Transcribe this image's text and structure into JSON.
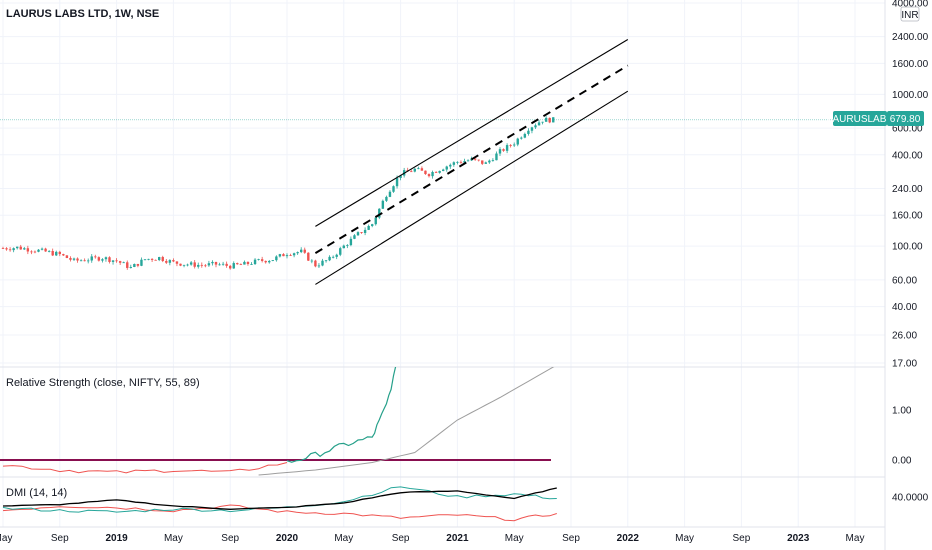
{
  "header": {
    "title": "LAURUS LABS LTD, 1W, NSE",
    "currency": "INR"
  },
  "price_badge": {
    "symbol": "LAURUSLABS",
    "price": "679.80",
    "color": "#26a69a"
  },
  "panels": {
    "rs_title": "Relative Strength (close, NIFTY, 55, 89)",
    "dmi_title": "DMI (14, 14)"
  },
  "colors": {
    "up": "#26a69a",
    "down": "#ef5350",
    "rs_line": "#26a08a",
    "rs_ma": "#9e9e9e",
    "rs_red": "#ef5350",
    "rs_zero": "#880e4f",
    "dmi_adx": "#000000",
    "dmi_plus": "#26a69a",
    "dmi_minus": "#ef5350",
    "grid": "#f0f3fa",
    "price_line": "#26a69a"
  },
  "chart_data": {
    "type": "line",
    "title": "LAURUS LABS LTD, 1W, NSE",
    "price_scale": "log",
    "y_ticks": [
      "4000.00",
      "2400.00",
      "1600.00",
      "1000.00",
      "600.00",
      "400.00",
      "240.00",
      "160.00",
      "100.00",
      "60.00",
      "40.00",
      "26.00",
      "17.00"
    ],
    "x_ticks": [
      "May",
      "Sep",
      "2019",
      "May",
      "Sep",
      "2020",
      "May",
      "Sep",
      "2021",
      "May",
      "Sep",
      "2022",
      "May",
      "Sep",
      "2023",
      "May"
    ],
    "last_price": 679.8,
    "price_points": [
      {
        "date": "2018-05",
        "close": 97
      },
      {
        "date": "2018-06",
        "close": 98
      },
      {
        "date": "2018-07",
        "close": 95
      },
      {
        "date": "2018-08",
        "close": 92
      },
      {
        "date": "2018-09",
        "close": 88
      },
      {
        "date": "2018-10",
        "close": 80
      },
      {
        "date": "2018-11",
        "close": 82
      },
      {
        "date": "2018-12",
        "close": 84
      },
      {
        "date": "2019-01",
        "close": 80
      },
      {
        "date": "2019-02",
        "close": 72
      },
      {
        "date": "2019-03",
        "close": 82
      },
      {
        "date": "2019-04",
        "close": 84
      },
      {
        "date": "2019-05",
        "close": 78
      },
      {
        "date": "2019-06",
        "close": 76
      },
      {
        "date": "2019-07",
        "close": 75
      },
      {
        "date": "2019-08",
        "close": 76
      },
      {
        "date": "2019-09",
        "close": 74
      },
      {
        "date": "2019-10",
        "close": 76
      },
      {
        "date": "2019-11",
        "close": 80
      },
      {
        "date": "2019-12",
        "close": 82
      },
      {
        "date": "2020-01",
        "close": 90
      },
      {
        "date": "2020-02",
        "close": 92
      },
      {
        "date": "2020-03",
        "close": 75
      },
      {
        "date": "2020-04",
        "close": 82
      },
      {
        "date": "2020-05",
        "close": 100
      },
      {
        "date": "2020-06",
        "close": 120
      },
      {
        "date": "2020-07",
        "close": 140
      },
      {
        "date": "2020-08",
        "close": 220
      },
      {
        "date": "2020-09",
        "close": 300
      },
      {
        "date": "2020-10",
        "close": 320
      },
      {
        "date": "2020-11",
        "close": 300
      },
      {
        "date": "2020-12",
        "close": 330
      },
      {
        "date": "2021-01",
        "close": 360
      },
      {
        "date": "2021-02",
        "close": 370
      },
      {
        "date": "2021-03",
        "close": 350
      },
      {
        "date": "2021-04",
        "close": 420
      },
      {
        "date": "2021-05",
        "close": 480
      },
      {
        "date": "2021-06",
        "close": 600
      },
      {
        "date": "2021-07",
        "close": 680
      },
      {
        "date": "2021-08",
        "close": 679.8
      }
    ],
    "channel": [
      {
        "name": "upper",
        "from": {
          "date": "2020-03",
          "price": 135
        },
        "to": {
          "date": "2022-01",
          "price": 2300
        },
        "style": "solid"
      },
      {
        "name": "middle",
        "from": {
          "date": "2020-03",
          "price": 90
        },
        "to": {
          "date": "2022-01",
          "price": 1550
        },
        "style": "dashed"
      },
      {
        "name": "lower",
        "from": {
          "date": "2020-03",
          "price": 56
        },
        "to": {
          "date": "2022-01",
          "price": 1050
        },
        "style": "solid"
      }
    ],
    "rs_panel": {
      "title": "Relative Strength (close, NIFTY, 55, 89)",
      "y_ticks": [
        "1.00",
        "0.00"
      ],
      "rs_values": [
        {
          "date": "2018-05",
          "v": -0.1
        },
        {
          "date": "2018-09",
          "v": -0.2
        },
        {
          "date": "2019-01",
          "v": -0.25
        },
        {
          "date": "2019-05",
          "v": -0.2
        },
        {
          "date": "2019-09",
          "v": -0.25
        },
        {
          "date": "2020-01",
          "v": -0.05
        },
        {
          "date": "2020-03",
          "v": 0.1
        },
        {
          "date": "2020-05",
          "v": 0.3
        },
        {
          "date": "2020-07",
          "v": 0.45
        },
        {
          "date": "2020-08",
          "v": 1.1
        },
        {
          "date": "2020-09",
          "v": 2.2
        }
      ],
      "rs_ma_values": [
        {
          "date": "2019-11",
          "v": -0.3
        },
        {
          "date": "2020-03",
          "v": -0.2
        },
        {
          "date": "2020-07",
          "v": -0.05
        },
        {
          "date": "2020-10",
          "v": 0.15
        },
        {
          "date": "2021-01",
          "v": 0.8
        },
        {
          "date": "2021-04",
          "v": 1.25
        },
        {
          "date": "2021-08",
          "v": 1.9
        }
      ]
    },
    "dmi_panel": {
      "title": "DMI (14, 14)",
      "y_ticks": [
        "40.0000"
      ],
      "adx": [
        {
          "date": "2018-05",
          "v": 28
        },
        {
          "date": "2018-09",
          "v": 30
        },
        {
          "date": "2019-01",
          "v": 36
        },
        {
          "date": "2019-05",
          "v": 28
        },
        {
          "date": "2019-09",
          "v": 24
        },
        {
          "date": "2020-01",
          "v": 26
        },
        {
          "date": "2020-05",
          "v": 32
        },
        {
          "date": "2020-09",
          "v": 46
        },
        {
          "date": "2021-01",
          "v": 48
        },
        {
          "date": "2021-05",
          "v": 38
        },
        {
          "date": "2021-08",
          "v": 52
        }
      ],
      "plus_di": [
        {
          "date": "2018-05",
          "v": 25
        },
        {
          "date": "2018-09",
          "v": 22
        },
        {
          "date": "2019-01",
          "v": 20
        },
        {
          "date": "2019-05",
          "v": 24
        },
        {
          "date": "2019-09",
          "v": 22
        },
        {
          "date": "2020-01",
          "v": 26
        },
        {
          "date": "2020-05",
          "v": 34
        },
        {
          "date": "2020-09",
          "v": 54
        },
        {
          "date": "2021-01",
          "v": 40
        },
        {
          "date": "2021-05",
          "v": 44
        },
        {
          "date": "2021-08",
          "v": 38
        }
      ],
      "minus_di": [
        {
          "date": "2018-05",
          "v": 22
        },
        {
          "date": "2018-09",
          "v": 28
        },
        {
          "date": "2019-01",
          "v": 26
        },
        {
          "date": "2019-05",
          "v": 22
        },
        {
          "date": "2019-09",
          "v": 28
        },
        {
          "date": "2020-01",
          "v": 20
        },
        {
          "date": "2020-05",
          "v": 18
        },
        {
          "date": "2020-09",
          "v": 12
        },
        {
          "date": "2021-01",
          "v": 16
        },
        {
          "date": "2021-05",
          "v": 10
        },
        {
          "date": "2021-08",
          "v": 18
        }
      ]
    }
  }
}
